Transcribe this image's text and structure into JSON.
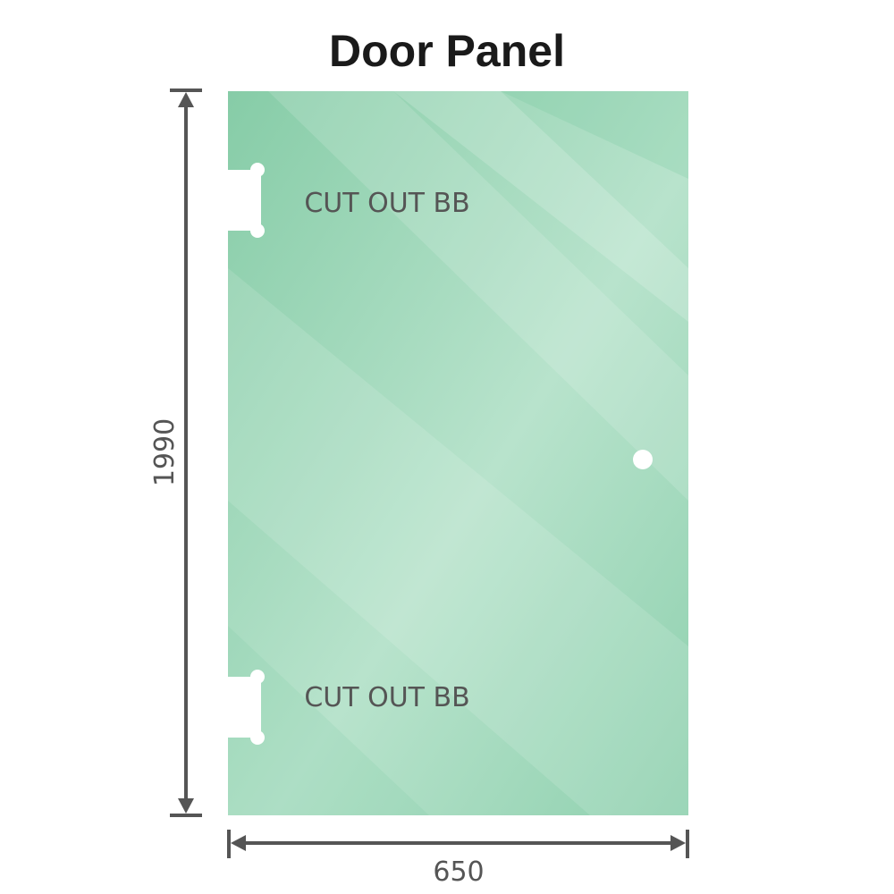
{
  "title": "Door Panel",
  "panel": {
    "color": "#8dd0ad",
    "cutout_labels": [
      "CUT OUT BB",
      "CUT OUT BB"
    ]
  },
  "dimensions": {
    "height": "1990",
    "width": "650",
    "line_color": "#555555"
  }
}
